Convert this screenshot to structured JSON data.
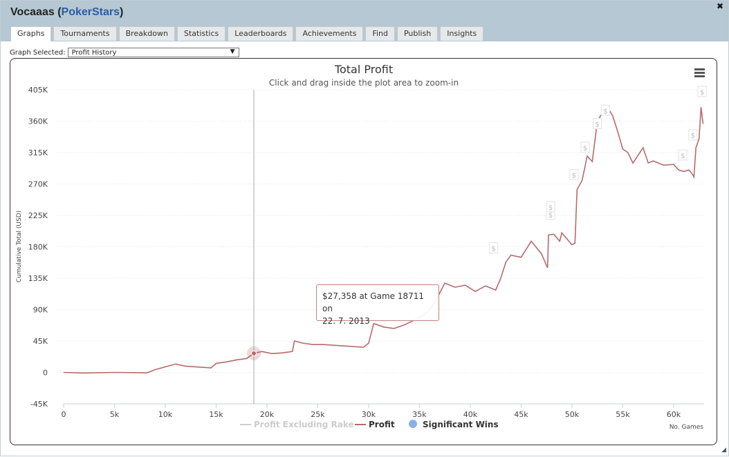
{
  "window": {
    "player": "Vocaaas",
    "site": "PokerStars",
    "close_icon": "✖"
  },
  "tabs": [
    "Graphs",
    "Tournaments",
    "Breakdown",
    "Statistics",
    "Leaderboards",
    "Achievements",
    "Find",
    "Publish",
    "Insights"
  ],
  "graph_select": {
    "label": "Graph Selected:",
    "value": "Profit History"
  },
  "chart_data": {
    "type": "line",
    "title": "Total Profit",
    "subtitle": "Click and drag inside the plot area to zoom-in",
    "ylabel": "Cumulative Total (USD)",
    "xlabel": "No. Games",
    "ylim": [
      -45000,
      405000
    ],
    "xlim": [
      0,
      63000
    ],
    "yticks": [
      -45000,
      0,
      45000,
      90000,
      135000,
      180000,
      225000,
      270000,
      315000,
      360000,
      405000
    ],
    "ytick_labels": [
      "-45K",
      "0",
      "45K",
      "90K",
      "135K",
      "180K",
      "225K",
      "270K",
      "315K",
      "360K",
      "405K"
    ],
    "xticks": [
      0,
      5000,
      10000,
      15000,
      20000,
      25000,
      30000,
      35000,
      40000,
      45000,
      50000,
      55000,
      60000
    ],
    "xtick_labels": [
      "0",
      "5k",
      "10k",
      "15k",
      "20k",
      "25k",
      "30k",
      "35k",
      "40k",
      "45k",
      "50k",
      "55k",
      "60k"
    ],
    "grid": "horizontal dotted",
    "legend": "bottom-center",
    "legend_items": [
      {
        "name": "Profit Excluding Rake",
        "color": "#cccccc",
        "shape": "line",
        "hidden": true
      },
      {
        "name": "Profit",
        "color": "#b56a6a",
        "shape": "line",
        "hidden": false
      },
      {
        "name": "Significant Wins",
        "color": "#8ab0e8",
        "shape": "circle",
        "hidden": false
      }
    ],
    "series": [
      {
        "name": "Profit",
        "color": "#b56a6a",
        "x": [
          0,
          2000,
          5000,
          8200,
          9000,
          10000,
          11000,
          12000,
          13000,
          14000,
          14500,
          15000,
          16000,
          17000,
          18000,
          18711,
          19500,
          20500,
          21500,
          22500,
          22700,
          23500,
          24500,
          25500,
          26500,
          27500,
          28500,
          29500,
          30000,
          30500,
          31500,
          32500,
          33500,
          34500,
          35500,
          36000,
          36500,
          37500,
          38500,
          39500,
          40500,
          41500,
          42500,
          43000,
          43500,
          44000,
          45000,
          46000,
          47000,
          47600,
          47700,
          48200,
          48800,
          49000,
          50000,
          50300,
          50500,
          51000,
          51500,
          52000,
          52500,
          53000,
          53500,
          54000,
          54500,
          55000,
          55500,
          56000,
          57000,
          57500,
          58000,
          59000,
          60000,
          60500,
          61000,
          61500,
          61800,
          62000,
          62200,
          62500,
          62700,
          62900
        ],
        "y": [
          0,
          -800,
          0,
          -600,
          4000,
          8000,
          12000,
          9000,
          8000,
          7000,
          6500,
          13000,
          15000,
          18000,
          20000,
          27358,
          30000,
          27000,
          28000,
          30000,
          45000,
          42000,
          40000,
          40000,
          39000,
          38000,
          37000,
          36000,
          42000,
          70000,
          65000,
          63000,
          68000,
          75000,
          83000,
          90000,
          100000,
          128000,
          122000,
          125000,
          116000,
          124000,
          118000,
          135000,
          158000,
          168000,
          165000,
          188000,
          170000,
          150000,
          197000,
          198000,
          188000,
          200000,
          183000,
          185000,
          262000,
          275000,
          310000,
          302000,
          360000,
          372000,
          380000,
          368000,
          345000,
          320000,
          315000,
          300000,
          322000,
          300000,
          303000,
          297000,
          298000,
          290000,
          288000,
          290000,
          285000,
          280000,
          322000,
          335000,
          380000,
          356000
        ]
      }
    ],
    "significant_wins": [
      {
        "x": 42300,
        "y": 178000
      },
      {
        "x": 47900,
        "y": 226000
      },
      {
        "x": 47900,
        "y": 237000
      },
      {
        "x": 50200,
        "y": 283000
      },
      {
        "x": 51300,
        "y": 322000
      },
      {
        "x": 52500,
        "y": 356000
      },
      {
        "x": 53300,
        "y": 375000
      },
      {
        "x": 60900,
        "y": 311000
      },
      {
        "x": 61900,
        "y": 340000
      },
      {
        "x": 62800,
        "y": 402000
      }
    ],
    "crosshair_x": 18711,
    "tooltip": {
      "line1": "$27,358 at Game 18711 on",
      "line2": "22. 7. 2013"
    }
  }
}
